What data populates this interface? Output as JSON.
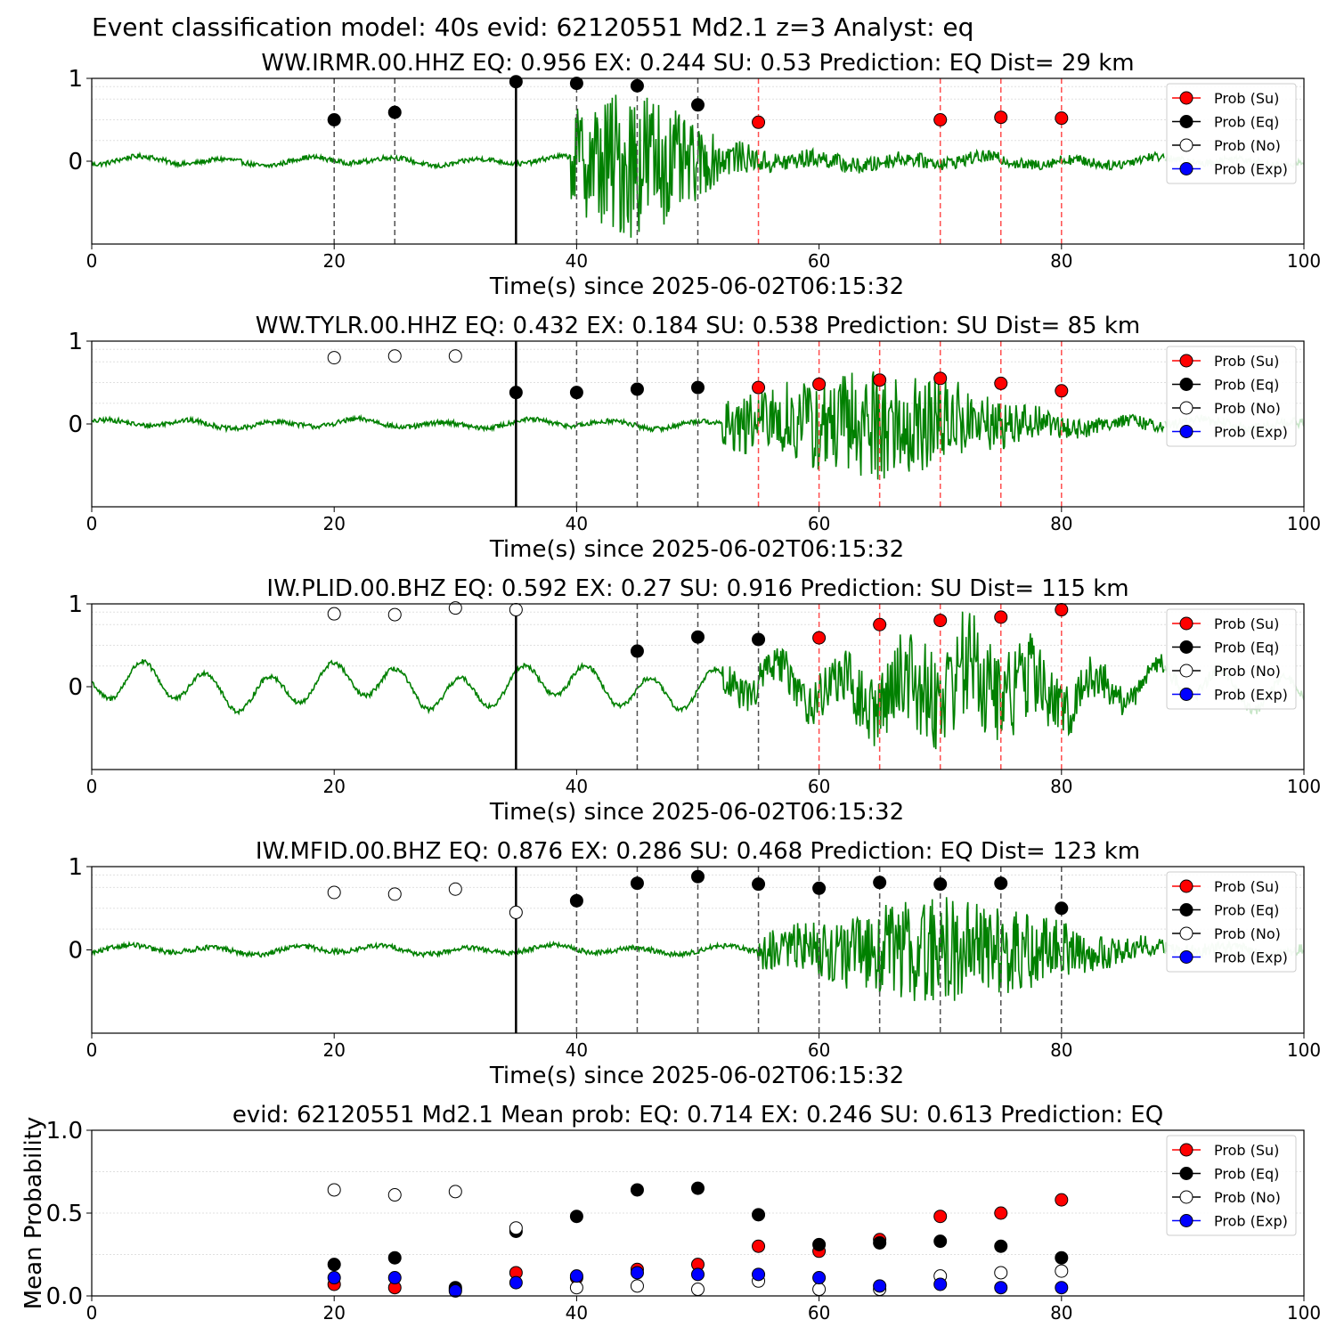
{
  "figure": {
    "suptitle": "Event classification model: 40s evid: 62120551 Md2.1 z=3 Analyst: eq",
    "colors": {
      "su": "#ff0000",
      "eq": "#000000",
      "no": "#ffffff",
      "exp": "#0000ff",
      "trace": "#008000",
      "trace_faded": "#c8e6c8",
      "suspect_line": "#ff4d4d",
      "quake_line": "#505050",
      "pick_line": "#000000",
      "grid": "#e0e0e0"
    },
    "legend_labels": [
      "Prob (Su)",
      "Prob (Eq)",
      "Prob (No)",
      "Prob (Exp)"
    ],
    "legend_placement": "upper-right"
  },
  "chart_data": [
    {
      "type": "line",
      "title": "WW.IRMR.00.HHZ   EQ: 0.956  EX: 0.244  SU: 0.53   Prediction: EQ    Dist= 29 km",
      "xlabel": "Time(s) since 2025-06-02T06:15:32",
      "ylabel": "",
      "xlim": [
        0,
        100
      ],
      "ylim": [
        -1,
        1
      ],
      "xticks": [
        "0",
        "20",
        "40",
        "60",
        "80",
        "100"
      ],
      "yticks": [
        "1",
        "0"
      ],
      "pick_time": 35,
      "trace": {
        "signal_onset": 39.5,
        "peak_time": 44.5,
        "color": "trace"
      },
      "eq_window_lines": [
        20,
        25,
        40,
        45,
        50
      ],
      "su_window_lines": [
        55,
        70,
        75,
        80
      ],
      "series": [
        {
          "name": "Prob (Su)",
          "x": [
            55,
            70,
            75,
            80
          ],
          "y": [
            0.47,
            0.5,
            0.53,
            0.52
          ]
        },
        {
          "name": "Prob (Eq)",
          "x": [
            20,
            25,
            35,
            40,
            45,
            50
          ],
          "y": [
            0.5,
            0.59,
            0.96,
            0.94,
            0.91,
            0.68
          ]
        },
        {
          "name": "Prob (No)",
          "x": [],
          "y": []
        },
        {
          "name": "Prob (Exp)",
          "x": [],
          "y": []
        }
      ]
    },
    {
      "type": "line",
      "title": "WW.TYLR.00.HHZ   EQ: 0.432  EX: 0.184  SU: 0.538   Prediction: SU    Dist= 85 km",
      "xlabel": "Time(s) since 2025-06-02T06:15:32",
      "ylabel": "",
      "xlim": [
        0,
        100
      ],
      "ylim": [
        -1,
        1
      ],
      "xticks": [
        "0",
        "20",
        "40",
        "60",
        "80",
        "100"
      ],
      "yticks": [
        "1",
        "0"
      ],
      "pick_time": 35,
      "trace": {
        "signal_onset": 52,
        "peak_time": 65,
        "color": "trace"
      },
      "eq_window_lines": [
        40,
        45,
        50
      ],
      "su_window_lines": [
        55,
        60,
        65,
        70,
        75,
        80
      ],
      "series": [
        {
          "name": "Prob (Su)",
          "x": [
            55,
            60,
            65,
            70,
            75,
            80
          ],
          "y": [
            0.44,
            0.48,
            0.53,
            0.55,
            0.49,
            0.4
          ]
        },
        {
          "name": "Prob (Eq)",
          "x": [
            35,
            40,
            45,
            50
          ],
          "y": [
            0.38,
            0.38,
            0.42,
            0.44
          ]
        },
        {
          "name": "Prob (No)",
          "x": [
            20,
            25,
            30
          ],
          "y": [
            0.8,
            0.82,
            0.82
          ]
        },
        {
          "name": "Prob (Exp)",
          "x": [],
          "y": []
        }
      ]
    },
    {
      "type": "line",
      "title": "IW.PLID.00.BHZ   EQ: 0.592  EX: 0.27  SU: 0.916   Prediction: SU    Dist= 115 km",
      "xlabel": "Time(s) since 2025-06-02T06:15:32",
      "ylabel": "",
      "xlim": [
        0,
        100
      ],
      "ylim": [
        -1,
        1
      ],
      "xticks": [
        "0",
        "20",
        "40",
        "60",
        "80",
        "100"
      ],
      "yticks": [
        "1",
        "0"
      ],
      "pick_time": 35,
      "trace": {
        "signal_onset": 52,
        "peak_time": 72,
        "color": "trace"
      },
      "eq_window_lines": [
        45,
        50,
        55
      ],
      "su_window_lines": [
        60,
        65,
        70,
        75,
        80
      ],
      "series": [
        {
          "name": "Prob (Su)",
          "x": [
            60,
            65,
            70,
            75,
            80
          ],
          "y": [
            0.59,
            0.75,
            0.8,
            0.84,
            0.93
          ]
        },
        {
          "name": "Prob (Eq)",
          "x": [
            45,
            50,
            55
          ],
          "y": [
            0.43,
            0.6,
            0.57
          ]
        },
        {
          "name": "Prob (No)",
          "x": [
            20,
            25,
            30,
            35
          ],
          "y": [
            0.88,
            0.87,
            0.95,
            0.93
          ]
        },
        {
          "name": "Prob (Exp)",
          "x": [],
          "y": []
        }
      ]
    },
    {
      "type": "line",
      "title": "IW.MFID.00.BHZ   EQ: 0.876  EX: 0.286  SU: 0.468   Prediction: EQ    Dist= 123 km",
      "xlabel": "Time(s) since 2025-06-02T06:15:32",
      "ylabel": "",
      "xlim": [
        0,
        100
      ],
      "ylim": [
        -1,
        1
      ],
      "xticks": [
        "0",
        "20",
        "40",
        "60",
        "80",
        "100"
      ],
      "yticks": [
        "1",
        "0"
      ],
      "pick_time": 35,
      "trace": {
        "signal_onset": 55,
        "peak_time": 71,
        "color": "trace"
      },
      "eq_window_lines": [
        40,
        45,
        50,
        55,
        60,
        65,
        70,
        75,
        80
      ],
      "su_window_lines": [],
      "series": [
        {
          "name": "Prob (Su)",
          "x": [],
          "y": []
        },
        {
          "name": "Prob (Eq)",
          "x": [
            40,
            45,
            50,
            55,
            60,
            65,
            70,
            75,
            80
          ],
          "y": [
            0.59,
            0.8,
            0.88,
            0.79,
            0.74,
            0.81,
            0.79,
            0.8,
            0.5
          ]
        },
        {
          "name": "Prob (No)",
          "x": [
            20,
            25,
            30,
            35
          ],
          "y": [
            0.69,
            0.67,
            0.73,
            0.45
          ]
        },
        {
          "name": "Prob (Exp)",
          "x": [],
          "y": []
        }
      ]
    },
    {
      "type": "scatter",
      "title": "evid: 62120551  Md2.1   Mean prob:   EQ: 0.714  EX: 0.246  SU: 0.613   Prediction: EQ",
      "xlabel": "",
      "ylabel": "Mean Probability",
      "xlim": [
        0,
        100
      ],
      "ylim": [
        0,
        1
      ],
      "xticks": [
        "0",
        "20",
        "40",
        "60",
        "80",
        "100"
      ],
      "yticks": [
        "1.0",
        "0.5",
        "0.0"
      ],
      "series": [
        {
          "name": "Prob (Su)",
          "x": [
            20,
            25,
            30,
            35,
            40,
            45,
            50,
            55,
            60,
            65,
            70,
            75,
            80
          ],
          "y": [
            0.07,
            0.05,
            0.04,
            0.14,
            0.11,
            0.16,
            0.19,
            0.3,
            0.27,
            0.34,
            0.48,
            0.5,
            0.58
          ]
        },
        {
          "name": "Prob (Eq)",
          "x": [
            20,
            25,
            30,
            35,
            40,
            45,
            50,
            55,
            60,
            65,
            70,
            75,
            80
          ],
          "y": [
            0.19,
            0.23,
            0.05,
            0.39,
            0.48,
            0.64,
            0.65,
            0.49,
            0.31,
            0.32,
            0.33,
            0.3,
            0.23
          ]
        },
        {
          "name": "Prob (No)",
          "x": [
            20,
            25,
            30,
            35,
            40,
            45,
            50,
            55,
            60,
            65,
            70,
            75,
            80
          ],
          "y": [
            0.64,
            0.61,
            0.63,
            0.41,
            0.05,
            0.06,
            0.04,
            0.09,
            0.04,
            0.04,
            0.12,
            0.14,
            0.15
          ]
        },
        {
          "name": "Prob (Exp)",
          "x": [
            20,
            25,
            30,
            35,
            40,
            45,
            50,
            55,
            60,
            65,
            70,
            75,
            80
          ],
          "y": [
            0.11,
            0.11,
            0.03,
            0.08,
            0.12,
            0.14,
            0.13,
            0.13,
            0.11,
            0.06,
            0.07,
            0.05,
            0.05
          ]
        }
      ]
    }
  ]
}
